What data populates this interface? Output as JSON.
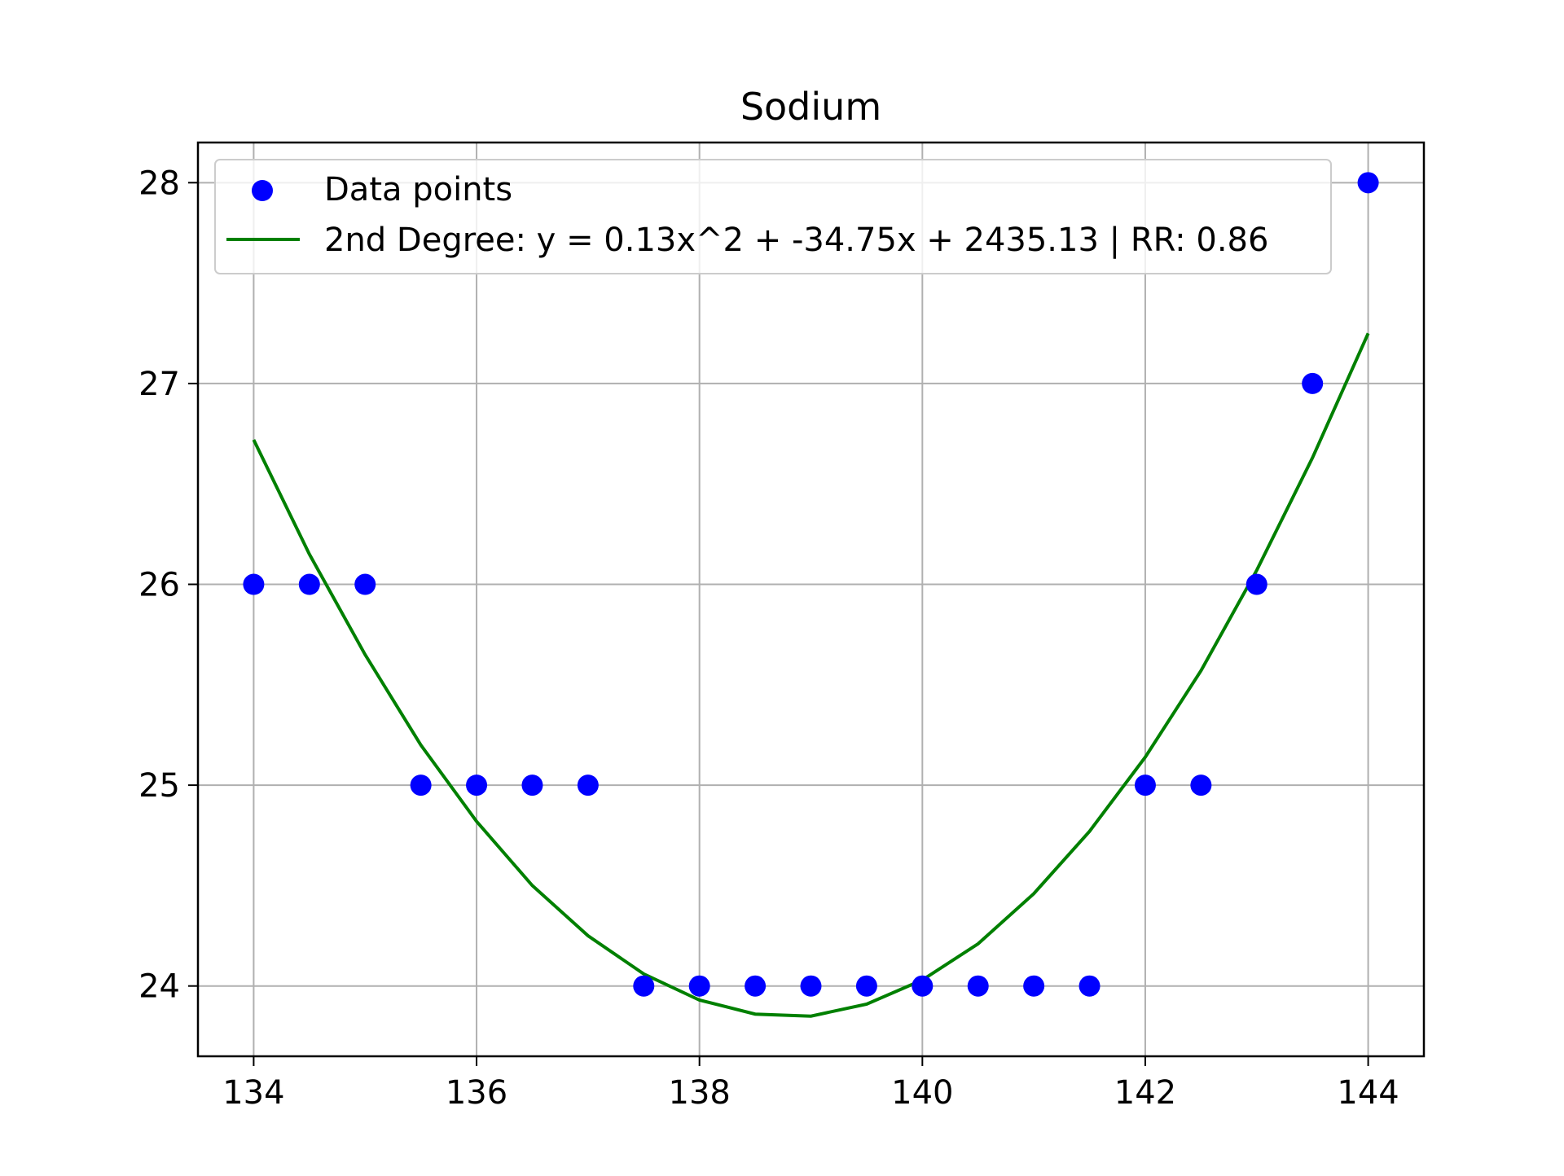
{
  "chart_data": {
    "type": "scatter",
    "title": "Sodium",
    "xlabel": "",
    "ylabel": "",
    "xlim": [
      133.5,
      144.5
    ],
    "ylim": [
      23.65,
      28.2
    ],
    "xticks": [
      134,
      136,
      138,
      140,
      142,
      144
    ],
    "yticks": [
      24,
      25,
      26,
      27,
      28
    ],
    "grid": true,
    "legend_position": "top",
    "series": [
      {
        "name": "Data points",
        "kind": "scatter",
        "color": "#0000ff",
        "points": [
          {
            "x": 134,
            "y": 26
          },
          {
            "x": 134.5,
            "y": 26
          },
          {
            "x": 135,
            "y": 26
          },
          {
            "x": 135.5,
            "y": 25
          },
          {
            "x": 136,
            "y": 25
          },
          {
            "x": 136.5,
            "y": 25
          },
          {
            "x": 137,
            "y": 25
          },
          {
            "x": 137.5,
            "y": 24
          },
          {
            "x": 138,
            "y": 24
          },
          {
            "x": 138.5,
            "y": 24
          },
          {
            "x": 139,
            "y": 24
          },
          {
            "x": 139.5,
            "y": 24
          },
          {
            "x": 140,
            "y": 24
          },
          {
            "x": 140.5,
            "y": 24
          },
          {
            "x": 141,
            "y": 24
          },
          {
            "x": 141.5,
            "y": 24
          },
          {
            "x": 142,
            "y": 25
          },
          {
            "x": 142.5,
            "y": 25
          },
          {
            "x": 143,
            "y": 26
          },
          {
            "x": 143.5,
            "y": 27
          },
          {
            "x": 144,
            "y": 28
          }
        ]
      },
      {
        "name": "2nd Degree: y = 0.13x^2 + -34.75x + 2435.13 | RR: 0.86",
        "kind": "line",
        "color": "#008000",
        "points": [
          {
            "x": 134,
            "y": 26.72
          },
          {
            "x": 134.5,
            "y": 26.15
          },
          {
            "x": 135,
            "y": 25.65
          },
          {
            "x": 135.5,
            "y": 25.2
          },
          {
            "x": 136,
            "y": 24.82
          },
          {
            "x": 136.5,
            "y": 24.5
          },
          {
            "x": 137,
            "y": 24.25
          },
          {
            "x": 137.5,
            "y": 24.06
          },
          {
            "x": 138,
            "y": 23.93
          },
          {
            "x": 138.5,
            "y": 23.86
          },
          {
            "x": 139,
            "y": 23.85
          },
          {
            "x": 139.5,
            "y": 23.91
          },
          {
            "x": 140,
            "y": 24.03
          },
          {
            "x": 140.5,
            "y": 24.21
          },
          {
            "x": 141,
            "y": 24.46
          },
          {
            "x": 141.5,
            "y": 24.77
          },
          {
            "x": 142,
            "y": 25.14
          },
          {
            "x": 142.5,
            "y": 25.57
          },
          {
            "x": 143,
            "y": 26.07
          },
          {
            "x": 143.5,
            "y": 26.63
          },
          {
            "x": 144,
            "y": 27.25
          }
        ]
      }
    ]
  }
}
